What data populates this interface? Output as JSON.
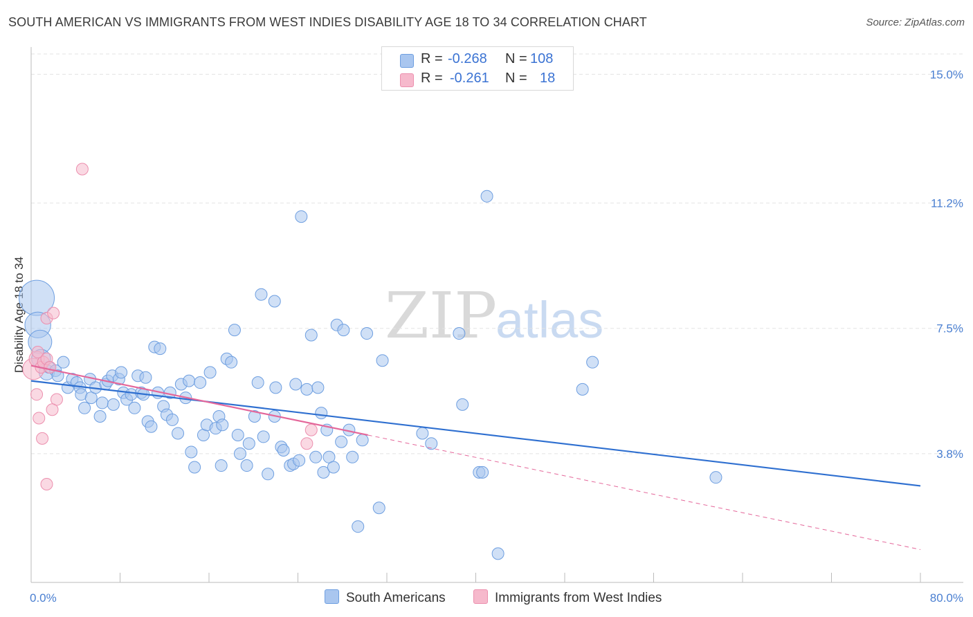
{
  "title": "SOUTH AMERICAN VS IMMIGRANTS FROM WEST INDIES DISABILITY AGE 18 TO 34 CORRELATION CHART",
  "source": "Source: ZipAtlas.com",
  "watermark": {
    "zip": "ZIP",
    "atlas": "atlas"
  },
  "legend_top": [
    {
      "r_label": "R =",
      "r_value": "-0.268",
      "n_label": "N =",
      "n_value": "108"
    },
    {
      "r_label": "R =",
      "r_value": "-0.261",
      "n_label": "N =",
      "n_value": "18"
    }
  ],
  "legend_bottom": [
    "South Americans",
    "Immigrants from West Indies"
  ],
  "colors": {
    "blue_fill": "#a9c6ef",
    "blue_stroke": "#6d9ee0",
    "blue_line": "#2e6fd0",
    "pink_fill": "#f6b9cc",
    "pink_stroke": "#ec8fae",
    "pink_line": "#e4679a",
    "tick_text": "#4a7fd1",
    "grid": "#e3e3e3"
  },
  "chart_data": {
    "type": "scatter",
    "title": "SOUTH AMERICAN VS IMMIGRANTS FROM WEST INDIES DISABILITY AGE 18 TO 34 CORRELATION CHART",
    "xlabel": "",
    "ylabel": "Disability Age 18 to 34",
    "xlim": [
      0,
      80
    ],
    "ylim": [
      0,
      15.6
    ],
    "x_tick_labels": [
      "0.0%",
      "80.0%"
    ],
    "y_ticks": [
      3.8,
      7.5,
      11.2,
      15.0
    ],
    "y_tick_labels": [
      "3.8%",
      "7.5%",
      "11.2%",
      "15.0%"
    ],
    "grid": true,
    "series": [
      {
        "name": "South Americans",
        "r": -0.268,
        "n": 108,
        "trend": {
          "x": [
            0,
            80
          ],
          "y": [
            5.95,
            2.85
          ],
          "style": "solid"
        },
        "points": [
          [
            0.5,
            8.4,
            3
          ],
          [
            0.6,
            7.6,
            2.2
          ],
          [
            0.8,
            7.1,
            2
          ],
          [
            0.9,
            6.6,
            1.6
          ],
          [
            1.4,
            6.2,
            1.3
          ],
          [
            1.6,
            6.35,
            1
          ],
          [
            2.2,
            6.25,
            1
          ],
          [
            2.4,
            6.1,
            1
          ],
          [
            2.9,
            6.5,
            1
          ],
          [
            3.3,
            5.75,
            1
          ],
          [
            3.7,
            6.0,
            1
          ],
          [
            4.1,
            5.9,
            1
          ],
          [
            4.4,
            5.75,
            1
          ],
          [
            4.5,
            5.55,
            1
          ],
          [
            4.8,
            5.15,
            1
          ],
          [
            5.3,
            6.0,
            1
          ],
          [
            5.4,
            5.45,
            1
          ],
          [
            5.8,
            5.75,
            1
          ],
          [
            6.2,
            4.9,
            1
          ],
          [
            6.4,
            5.3,
            1
          ],
          [
            6.7,
            5.85,
            1
          ],
          [
            6.9,
            5.95,
            1
          ],
          [
            7.3,
            6.1,
            1
          ],
          [
            7.4,
            5.25,
            1
          ],
          [
            7.9,
            6.0,
            1
          ],
          [
            8.1,
            6.2,
            1
          ],
          [
            8.3,
            5.6,
            1
          ],
          [
            8.6,
            5.4,
            1
          ],
          [
            9.0,
            5.55,
            1
          ],
          [
            9.3,
            5.15,
            1
          ],
          [
            9.6,
            6.1,
            1
          ],
          [
            9.9,
            5.6,
            1
          ],
          [
            10.1,
            5.55,
            1
          ],
          [
            10.3,
            6.05,
            1
          ],
          [
            10.5,
            4.75,
            1
          ],
          [
            10.8,
            4.6,
            1
          ],
          [
            11.1,
            6.95,
            1
          ],
          [
            11.4,
            5.6,
            1
          ],
          [
            11.6,
            6.9,
            1
          ],
          [
            11.9,
            5.2,
            1
          ],
          [
            12.2,
            4.95,
            1
          ],
          [
            12.5,
            5.6,
            1
          ],
          [
            12.7,
            4.8,
            1
          ],
          [
            13.2,
            4.4,
            1
          ],
          [
            13.5,
            5.85,
            1
          ],
          [
            13.9,
            5.45,
            1
          ],
          [
            14.2,
            5.95,
            1
          ],
          [
            14.4,
            3.85,
            1
          ],
          [
            14.7,
            3.4,
            1
          ],
          [
            15.2,
            5.9,
            1
          ],
          [
            15.5,
            4.35,
            1
          ],
          [
            15.8,
            4.65,
            1
          ],
          [
            16.1,
            6.2,
            1
          ],
          [
            16.6,
            4.55,
            1
          ],
          [
            16.9,
            4.9,
            1
          ],
          [
            17.2,
            4.65,
            1
          ],
          [
            17.1,
            3.45,
            1
          ],
          [
            17.6,
            6.6,
            1
          ],
          [
            18.0,
            6.5,
            1
          ],
          [
            18.3,
            7.45,
            1
          ],
          [
            18.6,
            4.35,
            1
          ],
          [
            18.8,
            3.8,
            1
          ],
          [
            19.4,
            3.45,
            1
          ],
          [
            19.6,
            4.1,
            1
          ],
          [
            20.1,
            4.9,
            1
          ],
          [
            20.4,
            5.9,
            1
          ],
          [
            20.7,
            8.5,
            1
          ],
          [
            20.9,
            4.3,
            1
          ],
          [
            21.3,
            3.2,
            1
          ],
          [
            21.9,
            8.3,
            1
          ],
          [
            21.9,
            4.9,
            1
          ],
          [
            22.0,
            5.75,
            1
          ],
          [
            22.5,
            4.0,
            1
          ],
          [
            22.7,
            3.9,
            1
          ],
          [
            23.3,
            3.45,
            1
          ],
          [
            23.6,
            3.5,
            1
          ],
          [
            23.8,
            5.85,
            1
          ],
          [
            24.1,
            3.6,
            1
          ],
          [
            24.3,
            10.8,
            1
          ],
          [
            24.8,
            5.7,
            1
          ],
          [
            25.2,
            7.3,
            1
          ],
          [
            25.6,
            3.7,
            1
          ],
          [
            25.8,
            5.75,
            1
          ],
          [
            26.1,
            5.0,
            1
          ],
          [
            26.3,
            3.25,
            1
          ],
          [
            26.6,
            4.5,
            1
          ],
          [
            26.8,
            3.7,
            1
          ],
          [
            27.2,
            3.4,
            1
          ],
          [
            27.5,
            7.6,
            1
          ],
          [
            27.9,
            4.15,
            1
          ],
          [
            28.1,
            7.45,
            1
          ],
          [
            28.6,
            4.5,
            1
          ],
          [
            28.9,
            3.7,
            1
          ],
          [
            29.4,
            1.65,
            1
          ],
          [
            29.8,
            4.2,
            1
          ],
          [
            30.2,
            7.35,
            1
          ],
          [
            31.3,
            2.2,
            1
          ],
          [
            31.6,
            6.55,
            1
          ],
          [
            35.2,
            4.4,
            1
          ],
          [
            36.0,
            4.1,
            1
          ],
          [
            38.5,
            7.35,
            1
          ],
          [
            38.8,
            5.25,
            1
          ],
          [
            40.3,
            3.25,
            1
          ],
          [
            40.6,
            3.25,
            1
          ],
          [
            41.0,
            11.4,
            1
          ],
          [
            42.0,
            0.85,
            1
          ],
          [
            49.6,
            5.7,
            1
          ],
          [
            50.5,
            6.5,
            1
          ],
          [
            61.6,
            3.1,
            1
          ]
        ]
      },
      {
        "name": "Immigrants from West Indies",
        "r": -0.261,
        "n": 18,
        "trend": {
          "x": [
            0,
            30.3,
            80
          ],
          "y": [
            6.4,
            4.35,
            0.97
          ],
          "style": "solid-then-dashed"
        },
        "points": [
          [
            0.2,
            6.3,
            1.8
          ],
          [
            0.5,
            6.6,
            1.3
          ],
          [
            0.6,
            6.8,
            1
          ],
          [
            0.9,
            6.35,
            1
          ],
          [
            1.1,
            6.5,
            1
          ],
          [
            1.4,
            6.6,
            1
          ],
          [
            1.7,
            6.35,
            1
          ],
          [
            1.4,
            7.8,
            1
          ],
          [
            2.0,
            7.95,
            1
          ],
          [
            0.5,
            5.55,
            1
          ],
          [
            2.3,
            5.4,
            1
          ],
          [
            1.9,
            5.1,
            1
          ],
          [
            0.7,
            4.85,
            1
          ],
          [
            1.0,
            4.25,
            1
          ],
          [
            1.4,
            2.9,
            1
          ],
          [
            4.6,
            12.2,
            1
          ],
          [
            24.8,
            4.1,
            1
          ],
          [
            25.2,
            4.5,
            1
          ]
        ]
      }
    ]
  }
}
